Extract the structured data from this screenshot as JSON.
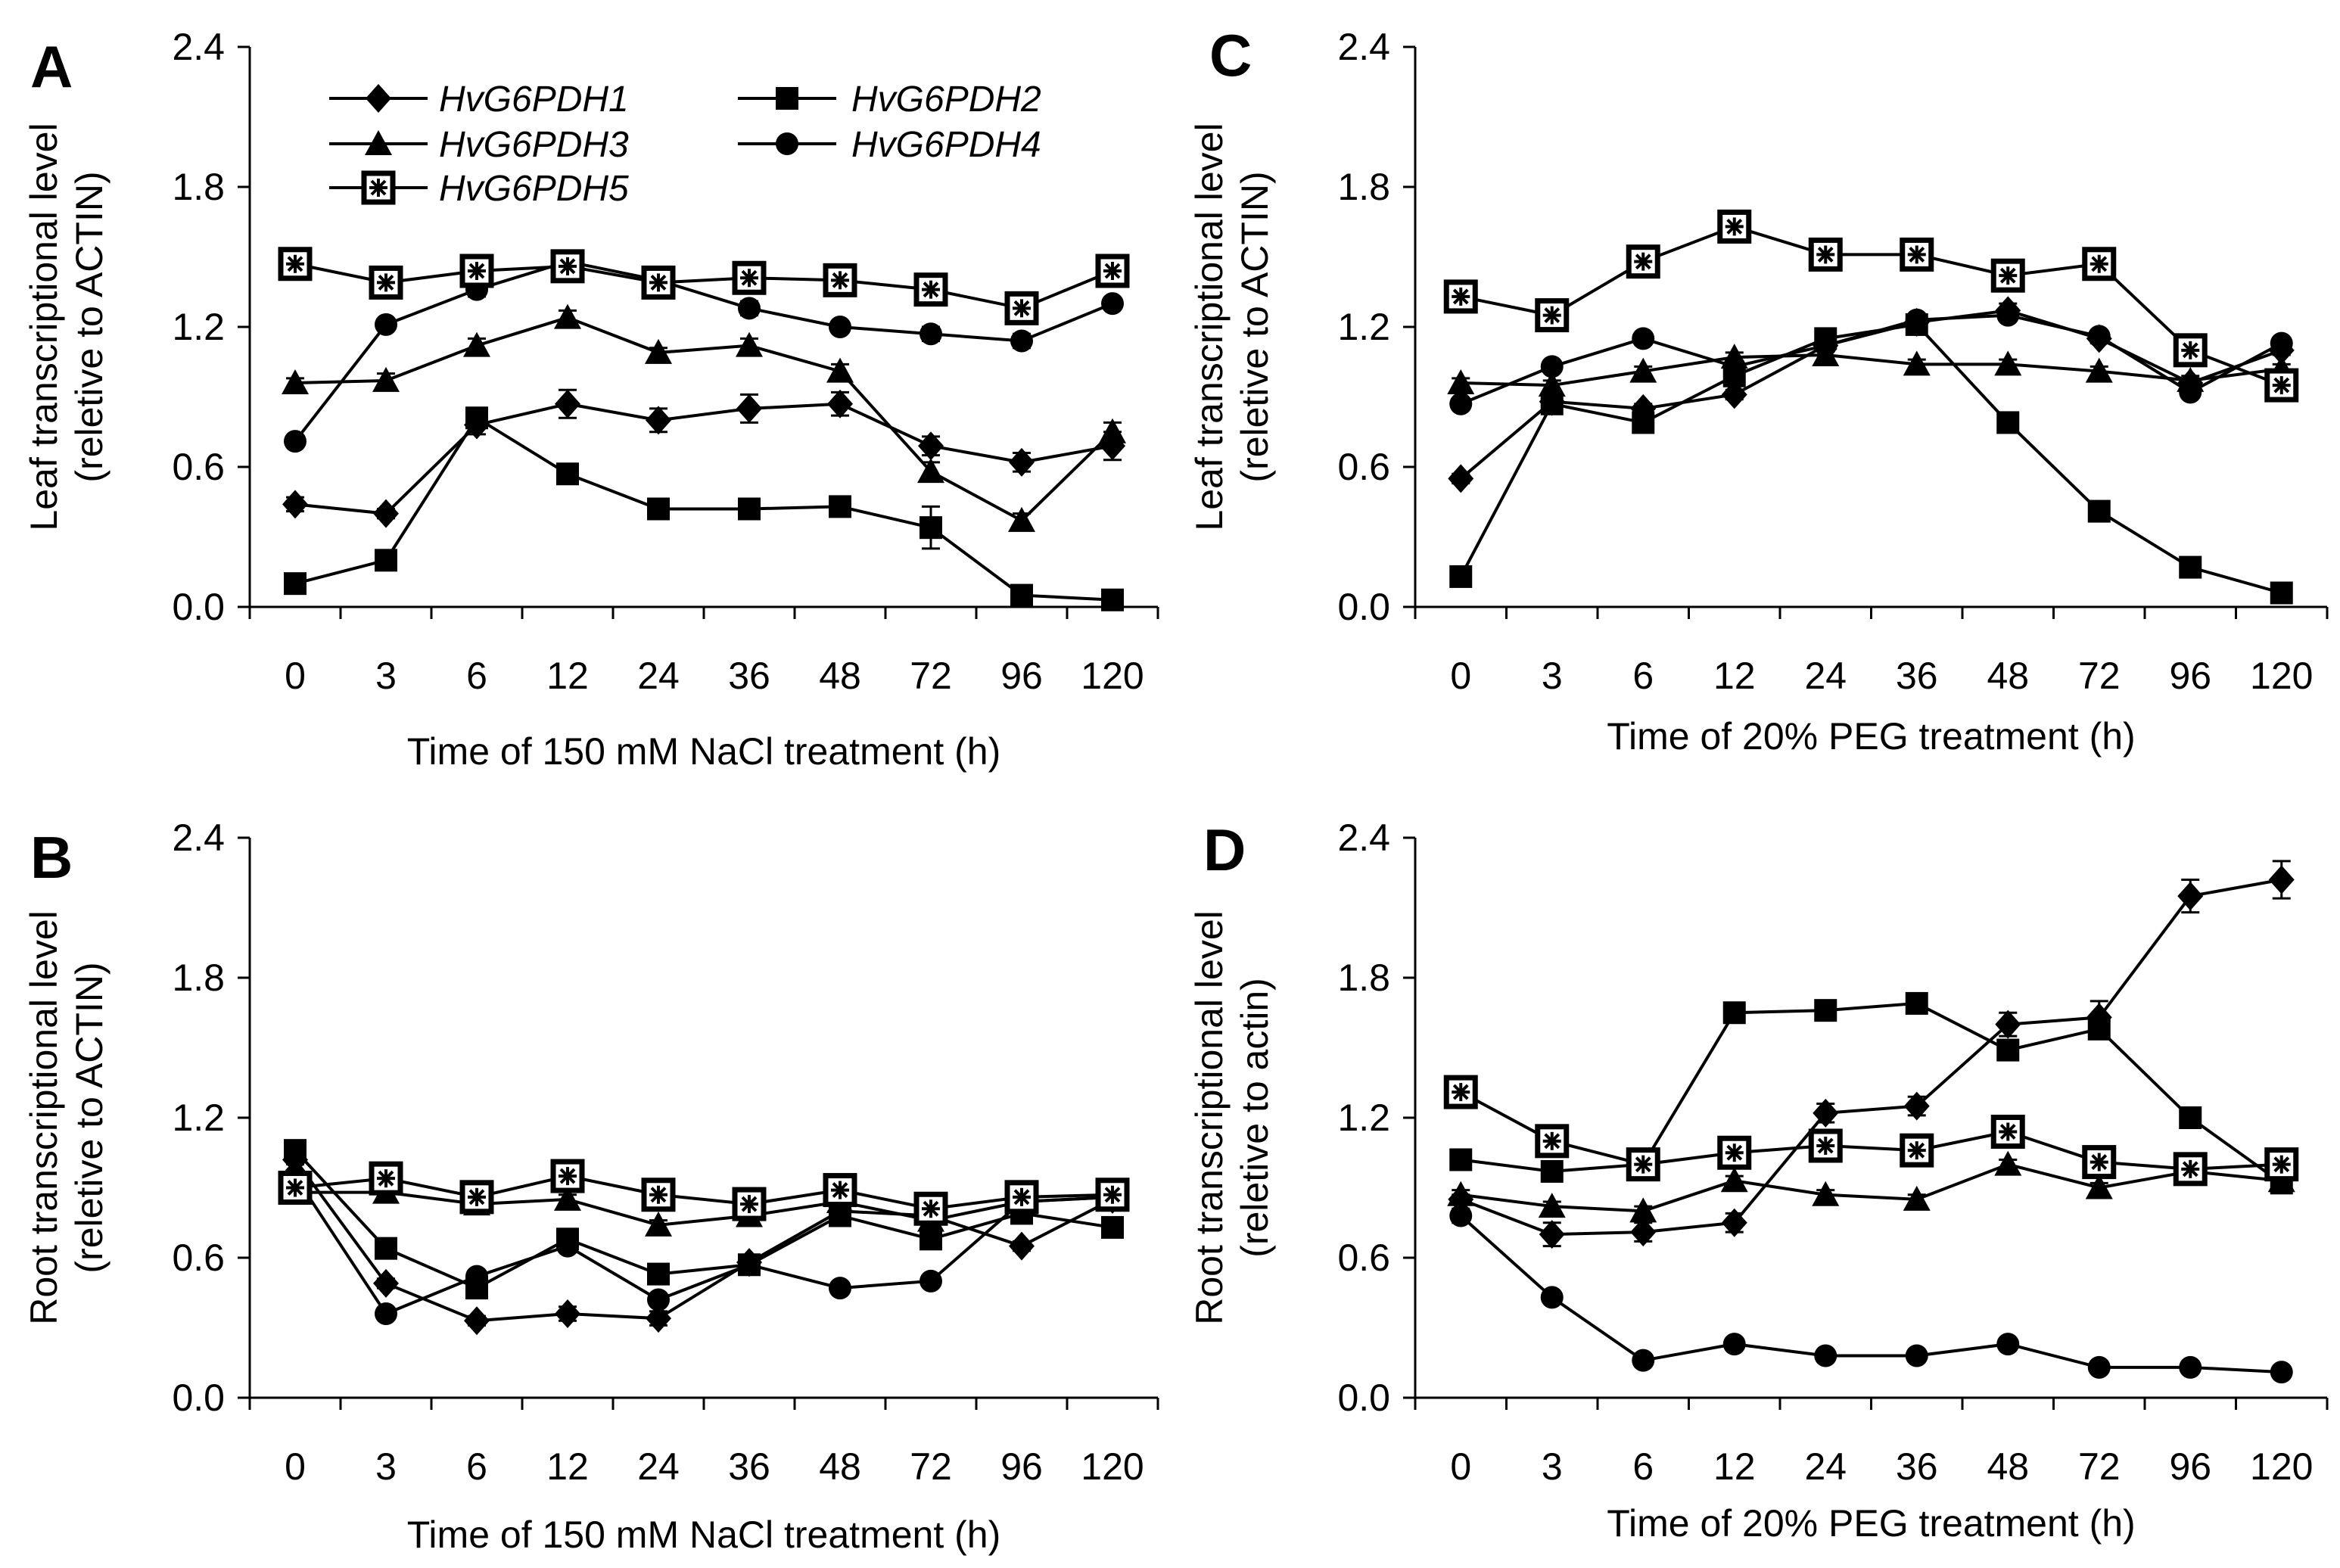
{
  "chart_data": [
    {
      "panel": "A",
      "type": "line",
      "xlabel": "Time of 150 mM NaCl treatment (h)",
      "ylabel": [
        "Leaf transcriptional level",
        "(reletive to ACTIN)"
      ],
      "categories": [
        "0",
        "3",
        "6",
        "12",
        "24",
        "36",
        "48",
        "72",
        "96",
        "120"
      ],
      "yticks": [
        "0.0",
        "0.6",
        "1.2",
        "1.8",
        "2.4"
      ],
      "ylim": [
        0,
        2.4
      ],
      "legend": true,
      "series": [
        {
          "name": "HvG6PDH1",
          "marker": "diamond",
          "values": [
            0.44,
            0.4,
            0.78,
            0.87,
            0.8,
            0.85,
            0.87,
            0.69,
            0.62,
            0.69
          ],
          "errors": [
            0.03,
            0.02,
            0.04,
            0.06,
            0.05,
            0.06,
            0.05,
            0.04,
            0.04,
            0.06
          ]
        },
        {
          "name": "HvG6PDH2",
          "marker": "square",
          "values": [
            0.1,
            0.2,
            0.81,
            0.57,
            0.42,
            0.42,
            0.43,
            0.34,
            0.05,
            0.03
          ],
          "errors": [
            0.02,
            0.02,
            0.03,
            0.03,
            0.02,
            0.02,
            0.04,
            0.09,
            0.02,
            0.01
          ]
        },
        {
          "name": "HvG6PDH3",
          "marker": "triangle",
          "values": [
            0.96,
            0.97,
            1.12,
            1.24,
            1.09,
            1.12,
            1.01,
            0.58,
            0.37,
            0.75
          ],
          "errors": [
            0.02,
            0.03,
            0.03,
            0.03,
            0.02,
            0.03,
            0.03,
            0.04,
            0.03,
            0.04
          ]
        },
        {
          "name": "HvG6PDH4",
          "marker": "circle",
          "values": [
            0.71,
            1.21,
            1.36,
            1.48,
            1.4,
            1.28,
            1.2,
            1.17,
            1.14,
            1.3
          ],
          "errors": [
            0.02,
            0.02,
            0.03,
            0.03,
            0.02,
            0.03,
            0.02,
            0.03,
            0.03,
            0.02
          ]
        },
        {
          "name": "HvG6PDH5",
          "marker": "star-square",
          "values": [
            1.47,
            1.39,
            1.44,
            1.46,
            1.39,
            1.41,
            1.4,
            1.36,
            1.28,
            1.44
          ],
          "errors": [
            0.02,
            0.02,
            0.02,
            0.02,
            0.02,
            0.02,
            0.02,
            0.02,
            0.03,
            0.02
          ]
        }
      ]
    },
    {
      "panel": "B",
      "type": "line",
      "xlabel": "Time of 150 mM NaCl treatment (h)",
      "ylabel": [
        "Root transcriptional level",
        "(reletive to ACTIN)"
      ],
      "categories": [
        "0",
        "3",
        "6",
        "12",
        "24",
        "36",
        "48",
        "72",
        "96",
        "120"
      ],
      "yticks": [
        "0.0",
        "0.6",
        "1.2",
        "1.8",
        "2.4"
      ],
      "ylim": [
        0,
        2.4
      ],
      "legend": false,
      "series": [
        {
          "name": "HvG6PDH1",
          "marker": "diamond",
          "values": [
            1.02,
            0.49,
            0.33,
            0.36,
            0.34,
            0.58,
            0.8,
            0.78,
            0.65,
            0.85
          ],
          "errors": [
            0.02,
            0.02,
            0.02,
            0.03,
            0.03,
            0.02,
            0.03,
            0.02,
            0.02,
            0.03
          ]
        },
        {
          "name": "HvG6PDH2",
          "marker": "square",
          "values": [
            1.06,
            0.64,
            0.47,
            0.68,
            0.53,
            0.57,
            0.78,
            0.68,
            0.79,
            0.73
          ],
          "errors": [
            0.02,
            0.02,
            0.02,
            0.03,
            0.02,
            0.02,
            0.02,
            0.02,
            0.03,
            0.02
          ]
        },
        {
          "name": "HvG6PDH3",
          "marker": "triangle",
          "values": [
            0.88,
            0.88,
            0.83,
            0.85,
            0.74,
            0.78,
            0.84,
            0.76,
            0.84,
            0.86
          ],
          "errors": [
            0.02,
            0.02,
            0.02,
            0.02,
            0.02,
            0.02,
            0.02,
            0.02,
            0.02,
            0.02
          ]
        },
        {
          "name": "HvG6PDH4",
          "marker": "circle",
          "values": [
            0.95,
            0.36,
            0.52,
            0.65,
            0.42,
            0.57,
            0.47,
            0.5,
            0.84,
            0.86
          ],
          "errors": [
            0.02,
            0.02,
            0.02,
            0.02,
            0.02,
            0.02,
            0.02,
            0.02,
            0.02,
            0.02
          ]
        },
        {
          "name": "HvG6PDH5",
          "marker": "star-square",
          "values": [
            0.9,
            0.94,
            0.86,
            0.95,
            0.87,
            0.83,
            0.89,
            0.81,
            0.86,
            0.87
          ],
          "errors": [
            0.02,
            0.02,
            0.02,
            0.02,
            0.02,
            0.02,
            0.02,
            0.02,
            0.02,
            0.02
          ]
        }
      ]
    },
    {
      "panel": "C",
      "type": "line",
      "xlabel": "Time of 20% PEG treatment (h)",
      "ylabel": [
        "Leaf transcriptional level",
        "(reletive to ACTIN)"
      ],
      "categories": [
        "0",
        "3",
        "6",
        "12",
        "24",
        "36",
        "48",
        "72",
        "96",
        "120"
      ],
      "yticks": [
        "0.0",
        "0.6",
        "1.2",
        "1.8",
        "2.4"
      ],
      "ylim": [
        0,
        2.4
      ],
      "legend": false,
      "series": [
        {
          "name": "HvG6PDH1",
          "marker": "diamond",
          "values": [
            0.55,
            0.88,
            0.85,
            0.91,
            1.12,
            1.22,
            1.27,
            1.15,
            0.96,
            1.1
          ],
          "errors": [
            0.02,
            0.02,
            0.02,
            0.02,
            0.02,
            0.02,
            0.03,
            0.02,
            0.02,
            0.02
          ]
        },
        {
          "name": "HvG6PDH2",
          "marker": "square",
          "values": [
            0.13,
            0.87,
            0.79,
            0.99,
            1.15,
            1.21,
            0.79,
            0.41,
            0.17,
            0.06
          ],
          "errors": [
            0.02,
            0.03,
            0.03,
            0.02,
            0.02,
            0.02,
            0.02,
            0.02,
            0.02,
            0.01
          ]
        },
        {
          "name": "HvG6PDH3",
          "marker": "triangle",
          "values": [
            0.96,
            0.95,
            1.01,
            1.07,
            1.08,
            1.04,
            1.04,
            1.01,
            0.97,
            1.02
          ],
          "errors": [
            0.02,
            0.02,
            0.02,
            0.02,
            0.02,
            0.02,
            0.02,
            0.02,
            0.02,
            0.02
          ]
        },
        {
          "name": "HvG6PDH4",
          "marker": "circle",
          "values": [
            0.87,
            1.03,
            1.15,
            1.03,
            1.12,
            1.23,
            1.25,
            1.16,
            0.92,
            1.13
          ],
          "errors": [
            0.02,
            0.02,
            0.02,
            0.02,
            0.02,
            0.02,
            0.02,
            0.02,
            0.02,
            0.02
          ]
        },
        {
          "name": "HvG6PDH5",
          "marker": "star-square",
          "values": [
            1.33,
            1.25,
            1.48,
            1.63,
            1.51,
            1.51,
            1.42,
            1.47,
            1.1,
            0.95
          ],
          "errors": [
            0.02,
            0.02,
            0.02,
            0.02,
            0.02,
            0.02,
            0.02,
            0.02,
            0.02,
            0.02
          ]
        }
      ]
    },
    {
      "panel": "D",
      "type": "line",
      "xlabel": "Time of 20% PEG treatment (h)",
      "ylabel": [
        "Root transcriptional level",
        "(reletive to actin)"
      ],
      "categories": [
        "0",
        "3",
        "6",
        "12",
        "24",
        "36",
        "48",
        "72",
        "96",
        "120"
      ],
      "yticks": [
        "0.0",
        "0.6",
        "1.2",
        "1.8",
        "2.4"
      ],
      "ylim": [
        0,
        2.4
      ],
      "legend": false,
      "series": [
        {
          "name": "HvG6PDH1",
          "marker": "diamond",
          "values": [
            0.85,
            0.7,
            0.71,
            0.75,
            1.22,
            1.25,
            1.6,
            1.63,
            2.15,
            2.22
          ],
          "errors": [
            0.02,
            0.05,
            0.04,
            0.04,
            0.04,
            0.04,
            0.05,
            0.07,
            0.07,
            0.08
          ]
        },
        {
          "name": "HvG6PDH2",
          "marker": "square",
          "values": [
            1.02,
            0.97,
            1.0,
            1.65,
            1.66,
            1.69,
            1.49,
            1.58,
            1.2,
            0.92
          ],
          "errors": [
            0.02,
            0.02,
            0.02,
            0.02,
            0.02,
            0.02,
            0.03,
            0.03,
            0.02,
            0.02
          ]
        },
        {
          "name": "HvG6PDH3",
          "marker": "triangle",
          "values": [
            0.87,
            0.82,
            0.8,
            0.93,
            0.87,
            0.85,
            1.0,
            0.9,
            0.97,
            0.93
          ],
          "errors": [
            0.02,
            0.02,
            0.02,
            0.02,
            0.02,
            0.02,
            0.02,
            0.02,
            0.02,
            0.02
          ]
        },
        {
          "name": "HvG6PDH4",
          "marker": "circle",
          "values": [
            0.78,
            0.43,
            0.16,
            0.23,
            0.18,
            0.18,
            0.23,
            0.13,
            0.13,
            0.11
          ],
          "errors": [
            0.03,
            0.02,
            0.01,
            0.01,
            0.01,
            0.01,
            0.02,
            0.01,
            0.01,
            0.01
          ]
        },
        {
          "name": "HvG6PDH5",
          "marker": "star-square",
          "values": [
            1.31,
            1.1,
            1.0,
            1.05,
            1.08,
            1.06,
            1.14,
            1.01,
            0.98,
            1.0
          ],
          "errors": [
            0.02,
            0.02,
            0.02,
            0.02,
            0.02,
            0.02,
            0.02,
            0.02,
            0.02,
            0.02
          ]
        }
      ]
    }
  ]
}
